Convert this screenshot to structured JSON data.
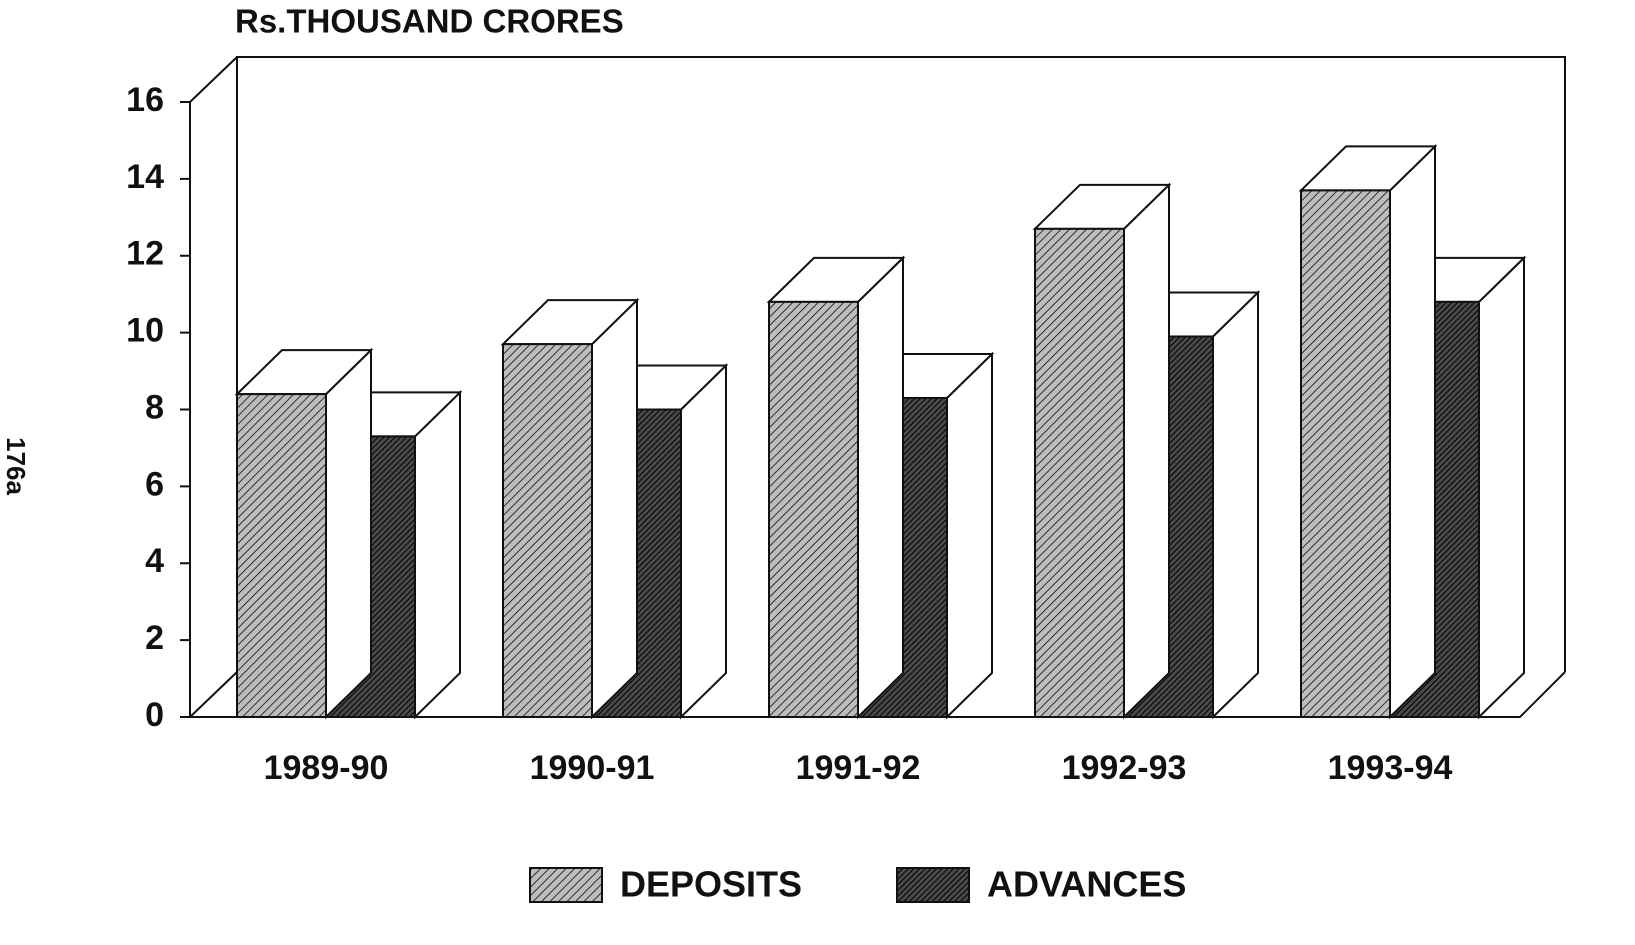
{
  "chart_data": {
    "type": "bar3d",
    "title": "Rs.THOUSAND CRORES",
    "annotation": "176a",
    "categories": [
      "1989-90",
      "1990-91",
      "1991-92",
      "1992-93",
      "1993-94"
    ],
    "series": [
      {
        "name": "DEPOSITS",
        "color": "#bdbdbd",
        "values": [
          8.4,
          9.7,
          10.8,
          12.7,
          13.7
        ]
      },
      {
        "name": "ADVANCES",
        "color": "#4a4a4a",
        "values": [
          7.3,
          8.0,
          8.3,
          9.9,
          10.8
        ]
      }
    ],
    "ylim": [
      0,
      16
    ],
    "yticks": [
      0,
      2,
      4,
      6,
      8,
      10,
      12,
      14,
      16
    ]
  }
}
